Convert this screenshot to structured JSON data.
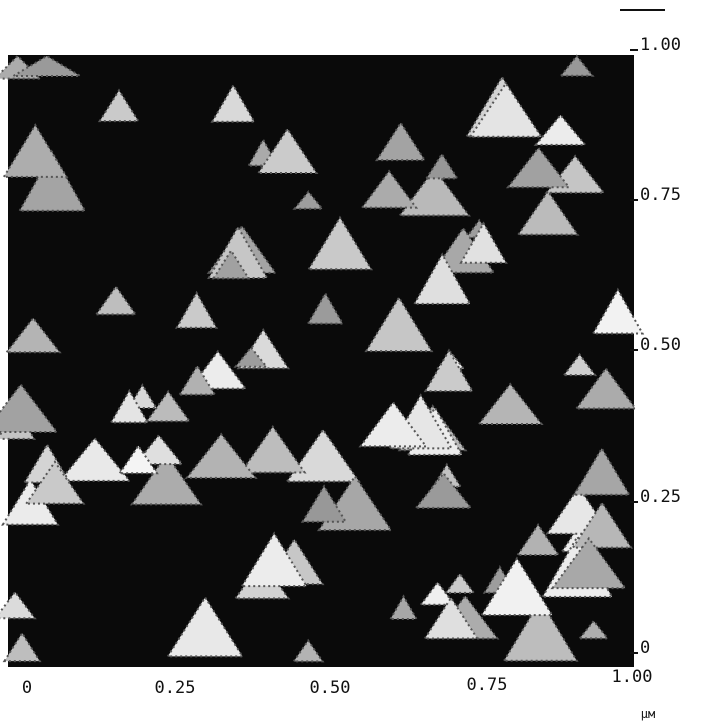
{
  "image": {
    "x_axis": {
      "ticks": [
        "0",
        "0.25",
        "0.50",
        "0.75",
        "1.00"
      ],
      "unit": "µм"
    },
    "y_axis": {
      "ticks": [
        "0",
        "0.25",
        "0.50",
        "0.75",
        "1.00"
      ]
    }
  }
}
